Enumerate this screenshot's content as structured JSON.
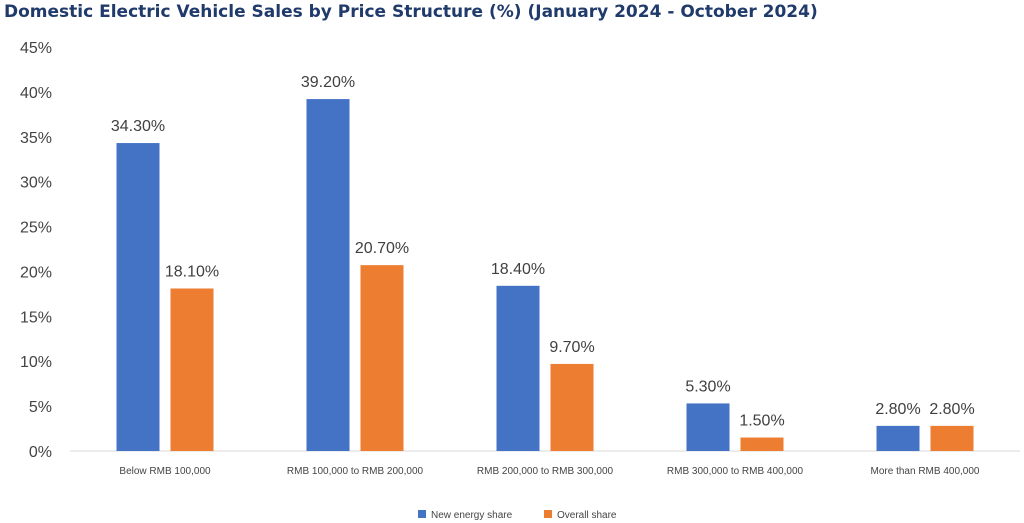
{
  "chart_data": {
    "type": "bar",
    "title": "Domestic Electric Vehicle Sales by Price Structure (%) (January 2024 - October 2024)",
    "xlabel": "",
    "ylabel": "",
    "categories": [
      "Below RMB 100,000",
      "RMB 100,000 to RMB 200,000",
      "RMB 200,000 to RMB 300,000",
      "RMB 300,000 to RMB 400,000",
      "More than RMB 400,000"
    ],
    "series": [
      {
        "name": "New energy share",
        "values": [
          34.3,
          39.2,
          18.4,
          5.3,
          2.8
        ],
        "labels": [
          "34.30%",
          "39.20%",
          "18.40%",
          "5.30%",
          "2.80%"
        ],
        "color": "#4472c4"
      },
      {
        "name": "Overall share",
        "values": [
          18.1,
          20.7,
          9.7,
          1.5,
          2.8
        ],
        "labels": [
          "18.10%",
          "20.70%",
          "9.70%",
          "1.50%",
          "2.80%"
        ],
        "color": "#ed7d31"
      }
    ],
    "ylim": [
      0,
      45
    ],
    "yticks": [
      "0%",
      "5%",
      "10%",
      "15%",
      "20%",
      "25%",
      "30%",
      "35%",
      "40%",
      "45%"
    ],
    "grid": false,
    "legend": "bottom"
  }
}
